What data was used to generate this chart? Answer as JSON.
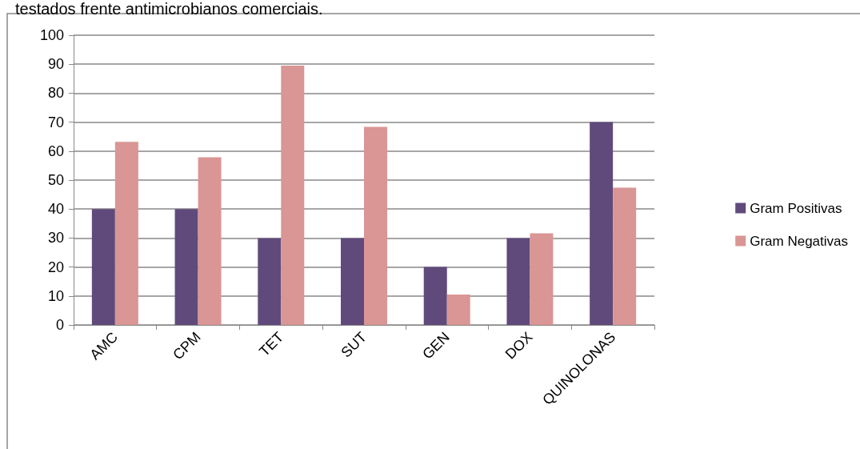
{
  "chart_data": {
    "type": "bar",
    "title": "testados frente antimicrobianos comerciais.",
    "categories": [
      "AMC",
      "CPM",
      "TET",
      "SUT",
      "GEN",
      "DOX",
      "QUINOLONAS"
    ],
    "series": [
      {
        "name": "Gram Positivas",
        "color": "#604a7b",
        "values": [
          40,
          40,
          30,
          30,
          20,
          30,
          70
        ]
      },
      {
        "name": "Gram Negativas",
        "color": "#d99694",
        "values": [
          63.2,
          57.9,
          89.5,
          68.4,
          10.5,
          31.6,
          47.4
        ]
      }
    ],
    "ylim": [
      0,
      100
    ],
    "yticks": [
      0,
      10,
      20,
      30,
      40,
      50,
      60,
      70,
      80,
      90,
      100
    ],
    "grid": "y",
    "legend": "right"
  }
}
